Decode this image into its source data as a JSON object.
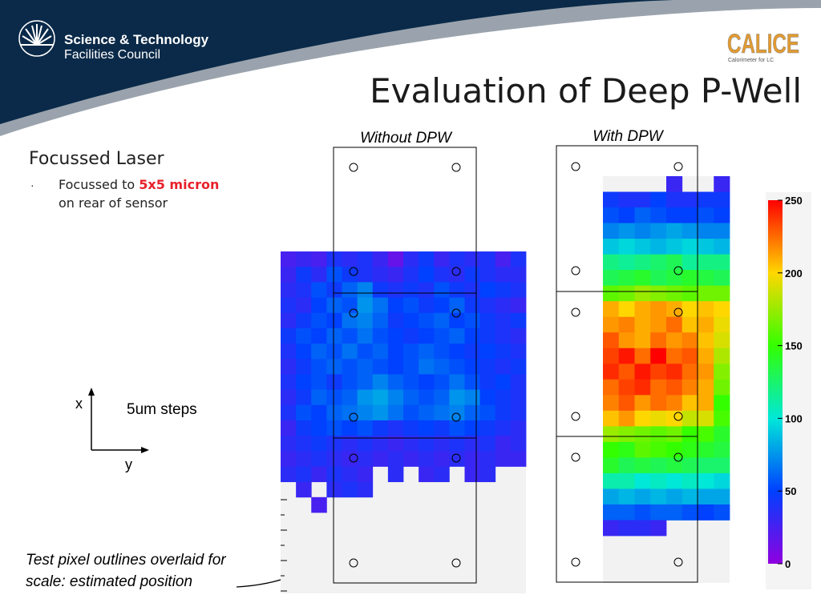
{
  "header": {
    "org_line1": "Science & Technology",
    "org_line2": "Facilities Council",
    "logo_text": "CALICE",
    "logo_subtext": "Calorimeter for LC"
  },
  "title": "Evaluation of Deep P-Well",
  "left_text": {
    "heading": "Focussed Laser",
    "bullet_prefix": "Focussed to ",
    "bullet_highlight": "5x5 micron",
    "bullet_line2": "on rear of sensor",
    "highlight_color": "#e8202a"
  },
  "axes_diagram": {
    "x_label": "x",
    "y_label": "y",
    "steps_label": "5um steps"
  },
  "annotation": {
    "line1": "Test pixel outlines overlaid for",
    "line2": "scale: estimated position"
  },
  "chart_data": [
    {
      "type": "heatmap",
      "title": "Without DPW",
      "color_scale": "rainbow",
      "zlim": [
        0,
        250
      ],
      "grid_rows": 17,
      "grid_cols": 16,
      "values": [
        [
          25,
          30,
          25,
          40,
          35,
          40,
          30,
          15,
          35,
          45,
          30,
          40,
          35,
          40,
          25,
          40
        ],
        [
          30,
          45,
          35,
          55,
          45,
          40,
          35,
          30,
          40,
          50,
          40,
          35,
          45,
          40,
          35,
          35
        ],
        [
          35,
          40,
          55,
          45,
          60,
          70,
          45,
          40,
          45,
          40,
          55,
          45,
          40,
          50,
          45,
          40
        ],
        [
          40,
          35,
          50,
          60,
          55,
          75,
          65,
          50,
          55,
          45,
          50,
          60,
          45,
          40,
          35,
          30
        ],
        [
          35,
          45,
          55,
          50,
          65,
          70,
          60,
          45,
          50,
          55,
          60,
          50,
          55,
          45,
          40,
          45
        ],
        [
          45,
          55,
          50,
          60,
          55,
          65,
          55,
          50,
          45,
          50,
          55,
          60,
          50,
          45,
          40,
          35
        ],
        [
          40,
          50,
          60,
          55,
          65,
          55,
          60,
          50,
          55,
          60,
          55,
          50,
          45,
          50,
          45,
          40
        ],
        [
          35,
          45,
          55,
          60,
          55,
          60,
          55,
          50,
          55,
          65,
          60,
          55,
          50,
          45,
          40,
          45
        ],
        [
          40,
          50,
          55,
          45,
          55,
          60,
          70,
          60,
          55,
          50,
          55,
          65,
          55,
          45,
          50,
          40
        ],
        [
          35,
          45,
          60,
          55,
          60,
          75,
          80,
          70,
          60,
          55,
          60,
          75,
          70,
          50,
          45,
          40
        ],
        [
          40,
          55,
          50,
          60,
          65,
          70,
          75,
          65,
          55,
          60,
          65,
          70,
          60,
          55,
          45,
          40
        ],
        [
          30,
          45,
          50,
          55,
          50,
          55,
          45,
          40,
          45,
          50,
          45,
          55,
          50,
          45,
          40,
          35
        ],
        [
          35,
          40,
          45,
          40,
          35,
          40,
          35,
          30,
          35,
          40,
          35,
          40,
          35,
          40,
          30,
          35
        ],
        [
          30,
          35,
          40,
          35,
          30,
          35,
          30,
          35,
          30,
          35,
          30,
          35,
          30,
          35,
          30,
          30
        ],
        [
          35,
          40,
          30,
          40,
          35,
          30,
          null,
          35,
          null,
          30,
          35,
          null,
          30,
          35,
          null,
          null
        ],
        [
          null,
          30,
          null,
          35,
          40,
          35,
          null,
          null,
          null,
          null,
          null,
          null,
          null,
          null,
          null,
          null
        ],
        [
          null,
          null,
          25,
          null,
          null,
          null,
          null,
          null,
          null,
          null,
          null,
          null,
          null,
          null,
          null,
          null
        ]
      ]
    },
    {
      "type": "heatmap",
      "title": "With DPW",
      "color_scale": "rainbow",
      "zlim": [
        0,
        250
      ],
      "grid_rows": 23,
      "grid_cols": 8,
      "values": [
        [
          null,
          null,
          null,
          null,
          30,
          null,
          null,
          30
        ],
        [
          45,
          40,
          40,
          50,
          40,
          40,
          45,
          45
        ],
        [
          55,
          50,
          60,
          55,
          50,
          50,
          55,
          50
        ],
        [
          70,
          75,
          70,
          75,
          80,
          75,
          70,
          70
        ],
        [
          90,
          95,
          90,
          85,
          90,
          95,
          90,
          85
        ],
        [
          120,
          115,
          120,
          125,
          130,
          115,
          120,
          120
        ],
        [
          130,
          135,
          140,
          130,
          135,
          140,
          135,
          130
        ],
        [
          160,
          165,
          175,
          170,
          165,
          160,
          165,
          165
        ],
        [
          210,
          200,
          210,
          215,
          210,
          200,
          205,
          200
        ],
        [
          215,
          220,
          210,
          215,
          225,
          205,
          210,
          195
        ],
        [
          230,
          215,
          210,
          225,
          215,
          220,
          205,
          190
        ],
        [
          235,
          245,
          225,
          250,
          225,
          230,
          210,
          180
        ],
        [
          240,
          230,
          245,
          235,
          240,
          225,
          215,
          170
        ],
        [
          225,
          235,
          240,
          225,
          230,
          220,
          210,
          165
        ],
        [
          220,
          230,
          215,
          225,
          220,
          205,
          210,
          150
        ],
        [
          205,
          215,
          200,
          195,
          200,
          185,
          190,
          155
        ],
        [
          175,
          170,
          165,
          160,
          165,
          150,
          155,
          140
        ],
        [
          150,
          145,
          160,
          155,
          150,
          145,
          140,
          135
        ],
        [
          140,
          130,
          135,
          130,
          135,
          130,
          125,
          125
        ],
        [
          110,
          110,
          100,
          105,
          100,
          105,
          100,
          95
        ],
        [
          80,
          85,
          80,
          85,
          80,
          85,
          80,
          80
        ],
        [
          60,
          60,
          55,
          60,
          60,
          55,
          50,
          55
        ],
        [
          30,
          35,
          35,
          30,
          null,
          null,
          null,
          null
        ]
      ]
    }
  ],
  "colorbar": {
    "ticks": [
      "250",
      "200",
      "150",
      "100",
      "50",
      "0"
    ]
  }
}
